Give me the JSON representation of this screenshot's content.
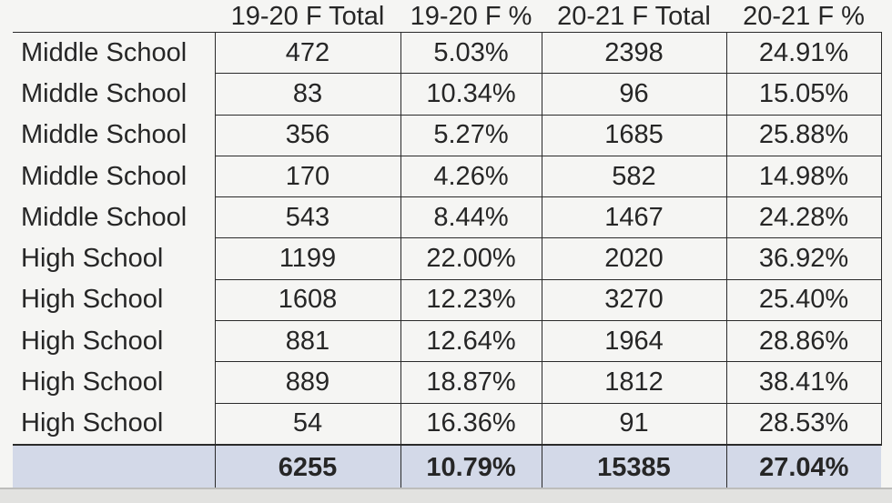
{
  "table": {
    "headers": [
      "",
      "19-20 F Total",
      "19-20 F %",
      "20-21 F Total",
      "20-21 F %"
    ],
    "rows": [
      {
        "label": "Middle School",
        "f1920_total": "472",
        "f1920_pct": "5.03%",
        "f2021_total": "2398",
        "f2021_pct": "24.91%"
      },
      {
        "label": "Middle School",
        "f1920_total": "83",
        "f1920_pct": "10.34%",
        "f2021_total": "96",
        "f2021_pct": "15.05%"
      },
      {
        "label": "Middle School",
        "f1920_total": "356",
        "f1920_pct": "5.27%",
        "f2021_total": "1685",
        "f2021_pct": "25.88%"
      },
      {
        "label": "Middle School",
        "f1920_total": "170",
        "f1920_pct": "4.26%",
        "f2021_total": "582",
        "f2021_pct": "14.98%"
      },
      {
        "label": "Middle School",
        "f1920_total": "543",
        "f1920_pct": "8.44%",
        "f2021_total": "1467",
        "f2021_pct": "24.28%"
      },
      {
        "label": "High School",
        "f1920_total": "1199",
        "f1920_pct": "22.00%",
        "f2021_total": "2020",
        "f2021_pct": "36.92%"
      },
      {
        "label": "High School",
        "f1920_total": "1608",
        "f1920_pct": "12.23%",
        "f2021_total": "3270",
        "f2021_pct": "25.40%"
      },
      {
        "label": "High School",
        "f1920_total": "881",
        "f1920_pct": "12.64%",
        "f2021_total": "1964",
        "f2021_pct": "28.86%"
      },
      {
        "label": "High School",
        "f1920_total": "889",
        "f1920_pct": "18.87%",
        "f2021_total": "1812",
        "f2021_pct": "38.41%"
      },
      {
        "label": "High School",
        "f1920_total": "54",
        "f1920_pct": "16.36%",
        "f2021_total": "91",
        "f2021_pct": "28.53%"
      }
    ],
    "totals": {
      "label": "",
      "f1920_total": "6255",
      "f1920_pct": "10.79%",
      "f2021_total": "15385",
      "f2021_pct": "27.04%"
    }
  },
  "colors": {
    "background": "#f5f5f3",
    "grid_line": "#2a2a2a",
    "totals_row_fill": "#d3d9e8",
    "text": "#262626"
  }
}
